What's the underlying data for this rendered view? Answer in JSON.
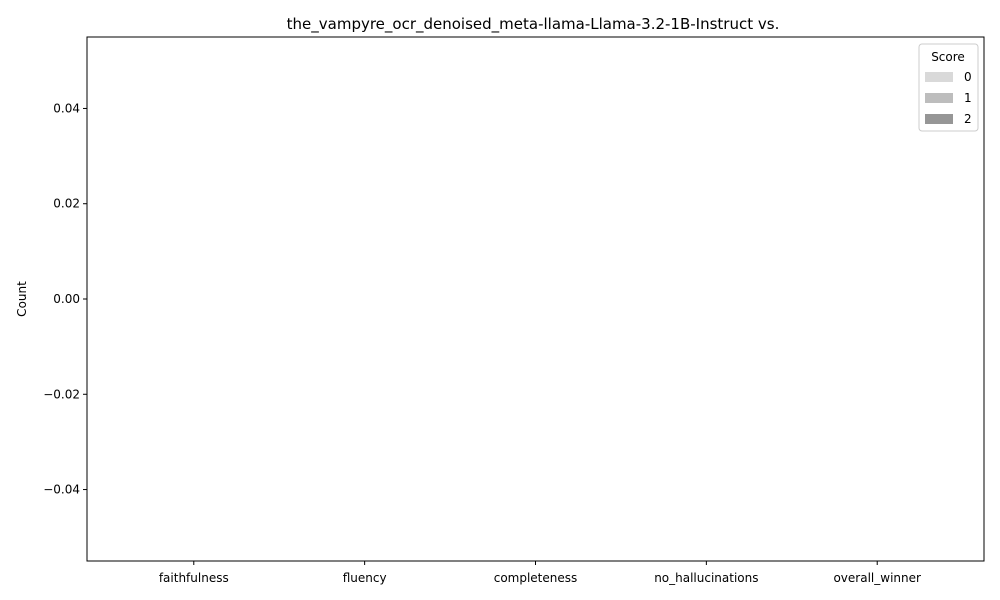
{
  "chart_data": {
    "type": "bar",
    "title": "the_vampyre_ocr_denoised_meta-llama-Llama-3.2-1B-Instruct vs.",
    "xlabel": "",
    "ylabel": "Count",
    "categories": [
      "faithfulness",
      "fluency",
      "completeness",
      "no_hallucinations",
      "overall_winner"
    ],
    "series": [
      {
        "name": "0",
        "values": [
          0,
          0,
          0,
          0,
          0
        ],
        "color": "#d9d9d9"
      },
      {
        "name": "1",
        "values": [
          0,
          0,
          0,
          0,
          0
        ],
        "color": "#bdbdbd"
      },
      {
        "name": "2",
        "values": [
          0,
          0,
          0,
          0,
          0
        ],
        "color": "#969696"
      }
    ],
    "ylim": [
      -0.055,
      0.055
    ],
    "yticks": [
      -0.04,
      -0.02,
      0.0,
      0.02,
      0.04
    ],
    "ytick_labels": [
      "−0.04",
      "−0.02",
      "0.00",
      "0.02",
      "0.04"
    ],
    "legend": {
      "title": "Score",
      "position": "top-right"
    },
    "grid": false
  }
}
